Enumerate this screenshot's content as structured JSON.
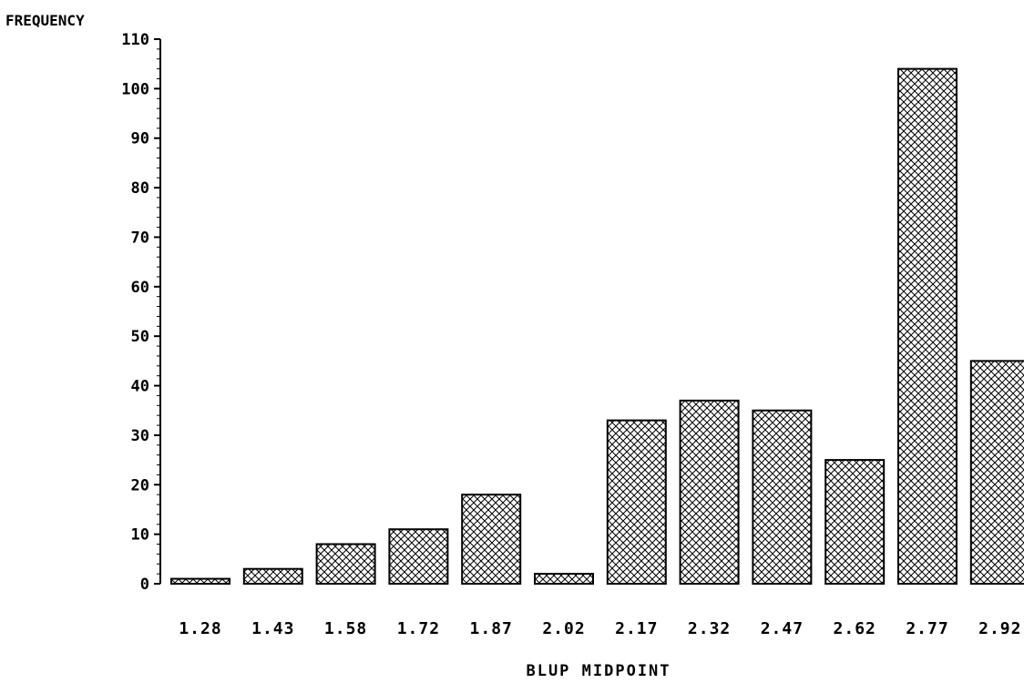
{
  "chart_data": {
    "type": "bar",
    "ylabel": "FREQUENCY",
    "xlabel": "BLUP MIDPOINT",
    "categories": [
      "1.28",
      "1.43",
      "1.58",
      "1.72",
      "1.87",
      "2.02",
      "2.17",
      "2.32",
      "2.47",
      "2.62",
      "2.77",
      "2.92"
    ],
    "values": [
      1,
      3,
      8,
      11,
      18,
      2,
      33,
      37,
      35,
      25,
      104,
      45
    ],
    "yticks": [
      "0",
      "10",
      "20",
      "30",
      "40",
      "50",
      "60",
      "70",
      "80",
      "90",
      "100",
      "110"
    ],
    "ylim": [
      0,
      110
    ],
    "grid": false,
    "bar_fill": "crosshatch",
    "colors": {
      "stroke": "#000000",
      "background": "#ffffff"
    }
  }
}
